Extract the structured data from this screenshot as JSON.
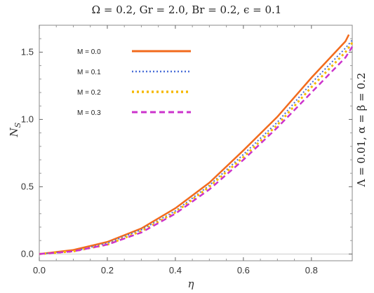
{
  "chart_data": {
    "type": "line",
    "title": "Ω = 0.2, Gr = 2.0, Br = 0.2, ϵ = 0.1",
    "side_label": "Λ = 0.01, α = β = 0.2",
    "xlabel": "η",
    "ylabel": "N",
    "ylabel_sub": "S",
    "xlim": [
      0,
      0.92
    ],
    "ylim": [
      -0.05,
      1.7
    ],
    "xticks": [
      "0.0",
      "0.2",
      "0.4",
      "0.6",
      "0.8"
    ],
    "yticks": [
      "0.0",
      "0.5",
      "1.0",
      "1.5"
    ],
    "grid": false,
    "legend_position": "top-left",
    "series": [
      {
        "name": "M = 0.0",
        "color": "#f26b1d",
        "dash": "solid",
        "x": [
          0,
          0.1,
          0.2,
          0.3,
          0.4,
          0.5,
          0.6,
          0.7,
          0.8,
          0.9,
          0.91
        ],
        "y": [
          0.0,
          0.03,
          0.09,
          0.19,
          0.34,
          0.53,
          0.77,
          1.02,
          1.31,
          1.58,
          1.63
        ]
      },
      {
        "name": "M = 0.1",
        "color": "#4a6fd8",
        "dash": "dot",
        "x": [
          0,
          0.1,
          0.2,
          0.3,
          0.4,
          0.5,
          0.6,
          0.7,
          0.8,
          0.9,
          0.92
        ],
        "y": [
          0.0,
          0.02,
          0.08,
          0.18,
          0.32,
          0.51,
          0.74,
          0.98,
          1.27,
          1.53,
          1.59
        ]
      },
      {
        "name": "M = 0.2",
        "color": "#f5b800",
        "dash": "dot-thick",
        "x": [
          0,
          0.1,
          0.2,
          0.3,
          0.4,
          0.5,
          0.6,
          0.7,
          0.8,
          0.9,
          0.92
        ],
        "y": [
          0.0,
          0.02,
          0.07,
          0.17,
          0.31,
          0.5,
          0.72,
          0.96,
          1.24,
          1.5,
          1.57
        ]
      },
      {
        "name": "M = 0.3",
        "color": "#cc33cc",
        "dash": "dash",
        "x": [
          0,
          0.1,
          0.2,
          0.3,
          0.4,
          0.5,
          0.6,
          0.7,
          0.8,
          0.9,
          0.92
        ],
        "y": [
          0.0,
          0.02,
          0.07,
          0.16,
          0.3,
          0.48,
          0.7,
          0.94,
          1.2,
          1.46,
          1.54
        ]
      }
    ]
  }
}
